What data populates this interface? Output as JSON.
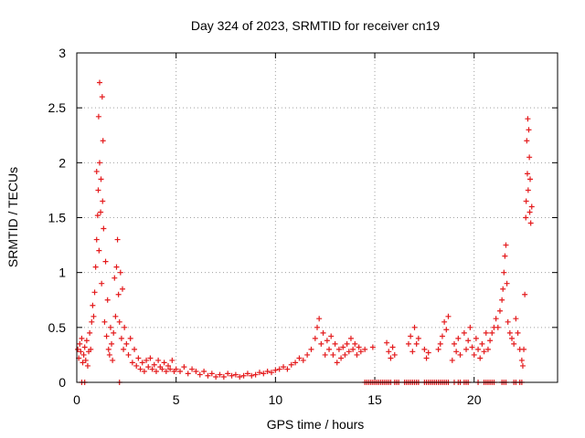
{
  "chart_data": {
    "type": "scatter",
    "title": "Day 324 of 2023, SRMTID for receiver cn19",
    "xlabel": "GPS time / hours",
    "ylabel": "SRMTID / TECUs",
    "xlim": [
      0,
      24.2
    ],
    "ylim": [
      0,
      3
    ],
    "grid": true,
    "marker": "+",
    "series_color": "#e41a1c",
    "x_ticks": [
      0,
      5,
      10,
      15,
      20
    ],
    "x_tick_labels": [
      "0",
      "5",
      "10",
      "15",
      "20"
    ],
    "y_ticks": [
      0,
      0.5,
      1,
      1.5,
      2,
      2.5,
      3
    ],
    "y_tick_labels": [
      "0",
      "0.5",
      "1",
      "1.5",
      "2",
      "2.5",
      "3"
    ],
    "series": [
      {
        "name": "SRMTID",
        "points": [
          [
            0.05,
            0.3
          ],
          [
            0.1,
            0.22
          ],
          [
            0.15,
            0.35
          ],
          [
            0.2,
            0.28
          ],
          [
            0.25,
            0.4
          ],
          [
            0.3,
            0.18
          ],
          [
            0.35,
            0.25
          ],
          [
            0.4,
            0.32
          ],
          [
            0.45,
            0.2
          ],
          [
            0.5,
            0.38
          ],
          [
            0.55,
            0.15
          ],
          [
            0.6,
            0.28
          ],
          [
            0.65,
            0.45
          ],
          [
            0.7,
            0.3
          ],
          [
            0.75,
            0.55
          ],
          [
            0.8,
            0.7
          ],
          [
            0.85,
            0.6
          ],
          [
            0.9,
            0.82
          ],
          [
            0.95,
            1.05
          ],
          [
            1.0,
            1.3
          ],
          [
            1.0,
            1.92
          ],
          [
            1.05,
            1.52
          ],
          [
            1.08,
            1.75
          ],
          [
            1.1,
            2.42
          ],
          [
            1.12,
            1.2
          ],
          [
            1.15,
            2.0
          ],
          [
            1.15,
            2.73
          ],
          [
            1.2,
            1.55
          ],
          [
            1.22,
            1.85
          ],
          [
            1.25,
            0.9
          ],
          [
            1.28,
            2.6
          ],
          [
            1.3,
            1.65
          ],
          [
            1.32,
            2.2
          ],
          [
            1.35,
            1.4
          ],
          [
            1.4,
            0.55
          ],
          [
            1.45,
            1.1
          ],
          [
            1.5,
            0.42
          ],
          [
            1.55,
            0.75
          ],
          [
            1.6,
            0.3
          ],
          [
            1.65,
            0.25
          ],
          [
            1.7,
            0.5
          ],
          [
            1.75,
            0.35
          ],
          [
            1.8,
            0.2
          ],
          [
            1.85,
            0.45
          ],
          [
            1.9,
            0.95
          ],
          [
            1.95,
            0.6
          ],
          [
            2.0,
            1.05
          ],
          [
            2.05,
            1.3
          ],
          [
            2.1,
            0.8
          ],
          [
            2.15,
            0.55
          ],
          [
            2.2,
            1.0
          ],
          [
            2.25,
            0.4
          ],
          [
            2.3,
            0.85
          ],
          [
            2.35,
            0.3
          ],
          [
            2.4,
            0.5
          ],
          [
            2.5,
            0.35
          ],
          [
            2.6,
            0.25
          ],
          [
            2.7,
            0.4
          ],
          [
            2.8,
            0.18
          ],
          [
            2.9,
            0.3
          ],
          [
            3.0,
            0.15
          ],
          [
            3.1,
            0.22
          ],
          [
            3.2,
            0.12
          ],
          [
            3.3,
            0.18
          ],
          [
            3.4,
            0.1
          ],
          [
            3.5,
            0.2
          ],
          [
            3.6,
            0.14
          ],
          [
            3.7,
            0.22
          ],
          [
            3.8,
            0.12
          ],
          [
            3.9,
            0.16
          ],
          [
            4.0,
            0.1
          ],
          [
            4.1,
            0.2
          ],
          [
            4.2,
            0.14
          ],
          [
            4.3,
            0.12
          ],
          [
            4.4,
            0.18
          ],
          [
            4.5,
            0.1
          ],
          [
            4.6,
            0.15
          ],
          [
            4.7,
            0.12
          ],
          [
            4.8,
            0.2
          ],
          [
            4.9,
            0.1
          ],
          [
            5.0,
            0.12
          ],
          [
            5.2,
            0.1
          ],
          [
            5.4,
            0.14
          ],
          [
            5.6,
            0.08
          ],
          [
            5.8,
            0.12
          ],
          [
            6.0,
            0.1
          ],
          [
            6.2,
            0.07
          ],
          [
            6.4,
            0.1
          ],
          [
            6.6,
            0.06
          ],
          [
            6.8,
            0.08
          ],
          [
            7.0,
            0.05
          ],
          [
            7.2,
            0.07
          ],
          [
            7.4,
            0.05
          ],
          [
            7.6,
            0.08
          ],
          [
            7.8,
            0.06
          ],
          [
            8.0,
            0.07
          ],
          [
            8.2,
            0.05
          ],
          [
            8.4,
            0.06
          ],
          [
            8.6,
            0.08
          ],
          [
            8.8,
            0.06
          ],
          [
            9.0,
            0.07
          ],
          [
            9.2,
            0.09
          ],
          [
            9.4,
            0.08
          ],
          [
            9.6,
            0.1
          ],
          [
            9.8,
            0.09
          ],
          [
            10.0,
            0.11
          ],
          [
            10.2,
            0.12
          ],
          [
            10.4,
            0.14
          ],
          [
            10.6,
            0.12
          ],
          [
            10.8,
            0.16
          ],
          [
            11.0,
            0.18
          ],
          [
            11.2,
            0.22
          ],
          [
            11.4,
            0.2
          ],
          [
            11.6,
            0.25
          ],
          [
            11.8,
            0.3
          ],
          [
            12.0,
            0.4
          ],
          [
            12.1,
            0.5
          ],
          [
            12.2,
            0.58
          ],
          [
            12.3,
            0.35
          ],
          [
            12.4,
            0.45
          ],
          [
            12.5,
            0.25
          ],
          [
            12.6,
            0.38
          ],
          [
            12.7,
            0.3
          ],
          [
            12.8,
            0.42
          ],
          [
            12.9,
            0.25
          ],
          [
            13.0,
            0.35
          ],
          [
            13.1,
            0.18
          ],
          [
            13.2,
            0.3
          ],
          [
            13.3,
            0.22
          ],
          [
            13.4,
            0.32
          ],
          [
            13.5,
            0.25
          ],
          [
            13.6,
            0.35
          ],
          [
            13.7,
            0.28
          ],
          [
            13.8,
            0.4
          ],
          [
            13.9,
            0.3
          ],
          [
            14.0,
            0.35
          ],
          [
            14.1,
            0.25
          ],
          [
            14.2,
            0.32
          ],
          [
            14.3,
            0.28
          ],
          [
            14.5,
            0.3
          ],
          [
            14.9,
            0.32
          ],
          [
            15.6,
            0.36
          ],
          [
            15.7,
            0.28
          ],
          [
            15.8,
            0.22
          ],
          [
            15.9,
            0.32
          ],
          [
            16.0,
            0.25
          ],
          [
            16.7,
            0.35
          ],
          [
            16.8,
            0.42
          ],
          [
            16.9,
            0.28
          ],
          [
            17.0,
            0.5
          ],
          [
            17.1,
            0.35
          ],
          [
            17.2,
            0.4
          ],
          [
            17.5,
            0.3
          ],
          [
            17.6,
            0.22
          ],
          [
            17.7,
            0.27
          ],
          [
            18.2,
            0.3
          ],
          [
            18.3,
            0.35
          ],
          [
            18.4,
            0.42
          ],
          [
            18.5,
            0.55
          ],
          [
            18.6,
            0.48
          ],
          [
            18.7,
            0.6
          ],
          [
            18.9,
            0.2
          ],
          [
            19.0,
            0.35
          ],
          [
            19.1,
            0.28
          ],
          [
            19.2,
            0.4
          ],
          [
            19.3,
            0.25
          ],
          [
            19.5,
            0.45
          ],
          [
            19.6,
            0.3
          ],
          [
            19.7,
            0.38
          ],
          [
            19.8,
            0.5
          ],
          [
            19.9,
            0.32
          ],
          [
            20.0,
            0.25
          ],
          [
            20.1,
            0.4
          ],
          [
            20.2,
            0.3
          ],
          [
            20.3,
            0.22
          ],
          [
            20.4,
            0.35
          ],
          [
            20.5,
            0.28
          ],
          [
            20.6,
            0.45
          ],
          [
            20.7,
            0.3
          ],
          [
            20.8,
            0.38
          ],
          [
            20.9,
            0.45
          ],
          [
            21.0,
            0.5
          ],
          [
            21.1,
            0.58
          ],
          [
            21.2,
            0.5
          ],
          [
            21.3,
            0.65
          ],
          [
            21.4,
            0.75
          ],
          [
            21.45,
            0.85
          ],
          [
            21.5,
            1.0
          ],
          [
            21.55,
            1.15
          ],
          [
            21.6,
            1.25
          ],
          [
            21.65,
            0.9
          ],
          [
            21.7,
            0.55
          ],
          [
            21.8,
            0.45
          ],
          [
            21.9,
            0.4
          ],
          [
            22.0,
            0.35
          ],
          [
            22.1,
            0.58
          ],
          [
            22.2,
            0.45
          ],
          [
            22.3,
            0.3
          ],
          [
            22.4,
            0.2
          ],
          [
            22.45,
            0.15
          ],
          [
            22.5,
            0.3
          ],
          [
            22.55,
            0.8
          ],
          [
            22.6,
            1.5
          ],
          [
            22.62,
            1.65
          ],
          [
            22.65,
            2.2
          ],
          [
            22.68,
            1.9
          ],
          [
            22.7,
            2.4
          ],
          [
            22.72,
            1.75
          ],
          [
            22.75,
            2.3
          ],
          [
            22.78,
            2.05
          ],
          [
            22.8,
            1.55
          ],
          [
            22.82,
            1.85
          ],
          [
            22.85,
            1.45
          ],
          [
            22.9,
            1.6
          ],
          [
            0.25,
            0.0
          ],
          [
            0.4,
            0.0
          ],
          [
            2.15,
            0.0
          ],
          [
            14.5,
            0.0
          ],
          [
            14.6,
            0.0
          ],
          [
            14.7,
            0.0
          ],
          [
            14.8,
            0.0
          ],
          [
            14.9,
            0.0
          ],
          [
            15.0,
            0.0
          ],
          [
            15.1,
            0.0
          ],
          [
            15.2,
            0.0
          ],
          [
            15.3,
            0.0
          ],
          [
            15.4,
            0.0
          ],
          [
            15.5,
            0.0
          ],
          [
            15.6,
            0.0
          ],
          [
            15.7,
            0.0
          ],
          [
            15.8,
            0.0
          ],
          [
            16.0,
            0.0
          ],
          [
            16.1,
            0.0
          ],
          [
            16.2,
            0.0
          ],
          [
            16.5,
            0.0
          ],
          [
            16.6,
            0.0
          ],
          [
            16.7,
            0.0
          ],
          [
            16.8,
            0.0
          ],
          [
            16.9,
            0.0
          ],
          [
            17.0,
            0.0
          ],
          [
            17.1,
            0.0
          ],
          [
            17.2,
            0.0
          ],
          [
            17.5,
            0.0
          ],
          [
            17.6,
            0.0
          ],
          [
            17.7,
            0.0
          ],
          [
            17.8,
            0.0
          ],
          [
            17.9,
            0.0
          ],
          [
            18.0,
            0.0
          ],
          [
            18.1,
            0.0
          ],
          [
            18.2,
            0.0
          ],
          [
            18.3,
            0.0
          ],
          [
            18.4,
            0.0
          ],
          [
            18.5,
            0.0
          ],
          [
            18.6,
            0.0
          ],
          [
            18.7,
            0.0
          ],
          [
            19.0,
            0.0
          ],
          [
            19.2,
            0.0
          ],
          [
            19.3,
            0.0
          ],
          [
            19.5,
            0.0
          ],
          [
            19.6,
            0.0
          ],
          [
            19.7,
            0.0
          ],
          [
            20.2,
            0.0
          ],
          [
            20.5,
            0.0
          ],
          [
            20.6,
            0.0
          ],
          [
            20.7,
            0.0
          ],
          [
            20.8,
            0.0
          ],
          [
            20.9,
            0.0
          ],
          [
            21.0,
            0.0
          ],
          [
            21.4,
            0.0
          ],
          [
            21.5,
            0.0
          ],
          [
            21.6,
            0.0
          ],
          [
            22.0,
            0.0
          ],
          [
            22.1,
            0.0
          ],
          [
            22.3,
            0.0
          ],
          [
            22.4,
            0.0
          ]
        ]
      }
    ]
  }
}
